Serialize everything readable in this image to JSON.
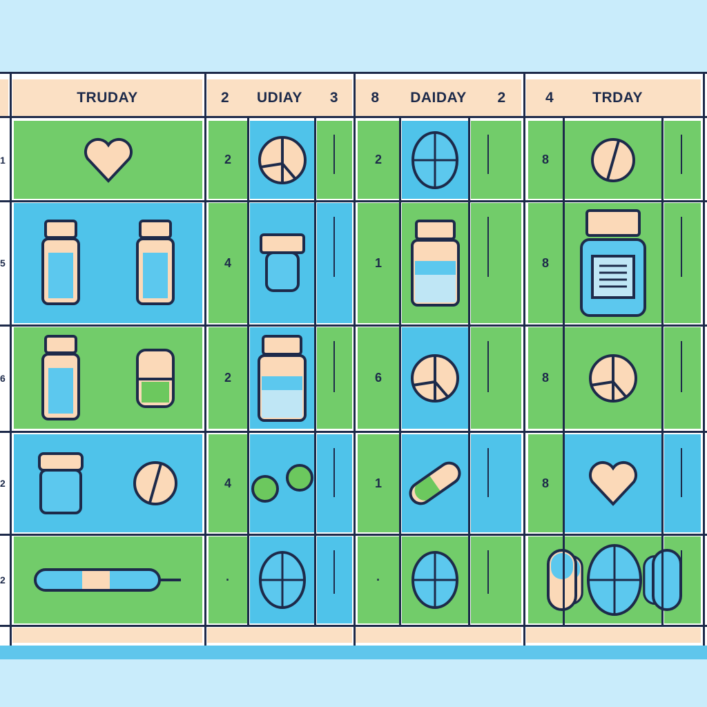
{
  "colors": {
    "green": "#72cc6a",
    "blue": "#4fc3ea",
    "peach": "#fbe0c4",
    "line": "#1d2a4a",
    "background": "#c9ecfb"
  },
  "header": {
    "columns": [
      {
        "label": "TRUDAY",
        "left_number": "",
        "right_number": ""
      },
      {
        "label": "UDIAY",
        "left_number": "2",
        "right_number": "3"
      },
      {
        "label": "DAIDAY",
        "left_number": "8",
        "right_number": "2"
      },
      {
        "label": "TRDAY",
        "left_number": "4",
        "right_number": ""
      }
    ]
  },
  "rows": [
    {
      "edge_label": "1",
      "col1_icons": [
        "heart-icon"
      ],
      "col2_number": "2",
      "col2_icon": "split-pill-icon",
      "col3_number": "2",
      "col3_icon": "oval-pill-icon",
      "col4_number": "8",
      "col4_icon": "round-pill-icon"
    },
    {
      "edge_label": "5",
      "col1_icons": [
        "vial-icon",
        "vial-icon"
      ],
      "col2_number": "4",
      "col2_icon": "small-vial-icon",
      "col3_number": "1",
      "col3_icon": "bottle-icon",
      "col4_number": "8",
      "col4_icon": "pill-bottle-icon"
    },
    {
      "edge_label": "6",
      "col1_icons": [
        "vial-icon",
        "capsule-vertical-icon"
      ],
      "col2_number": "2",
      "col2_icon": "bottle-icon",
      "col3_number": "6",
      "col3_icon": "split-pill-icon",
      "col4_number": "8",
      "col4_icon": "split-pill-icon"
    },
    {
      "edge_label": "2",
      "col1_icons": [
        "jar-icon",
        "round-pill-icon"
      ],
      "col2_number": "4",
      "col2_icon": "green-pills-icon",
      "col3_number": "1",
      "col3_icon": "capsule-icon",
      "col4_number": "8",
      "col4_icon": "heart-icon"
    },
    {
      "edge_label": "2",
      "col1_icons": [
        "syringe-icon"
      ],
      "col2_number": "·",
      "col2_icon": "oval-pill-icon",
      "col3_number": "·",
      "col3_icon": "oval-pill-icon",
      "col4_number": "",
      "col4_icon": "pills-group-icon"
    }
  ]
}
